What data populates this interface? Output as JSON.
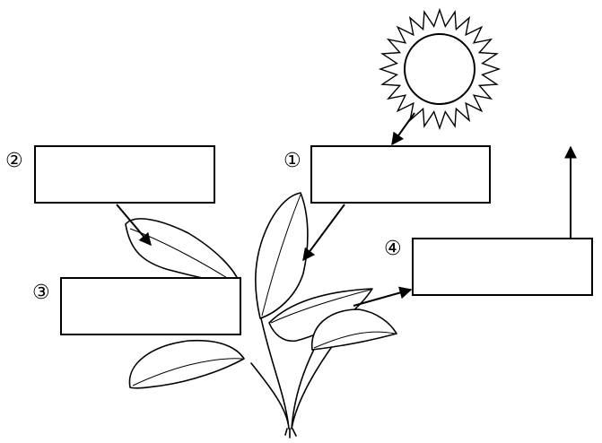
{
  "labels": {
    "box1": "①",
    "box2": "②",
    "box3": "③",
    "box4": "④"
  },
  "boxes": {
    "box1_text": "",
    "box2_text": "",
    "box3_text": "",
    "box4_text": ""
  },
  "icons": {
    "sun": "sun-icon",
    "plant": "plant-icon"
  },
  "colors": {
    "stroke": "#000000",
    "background": "#ffffff"
  }
}
